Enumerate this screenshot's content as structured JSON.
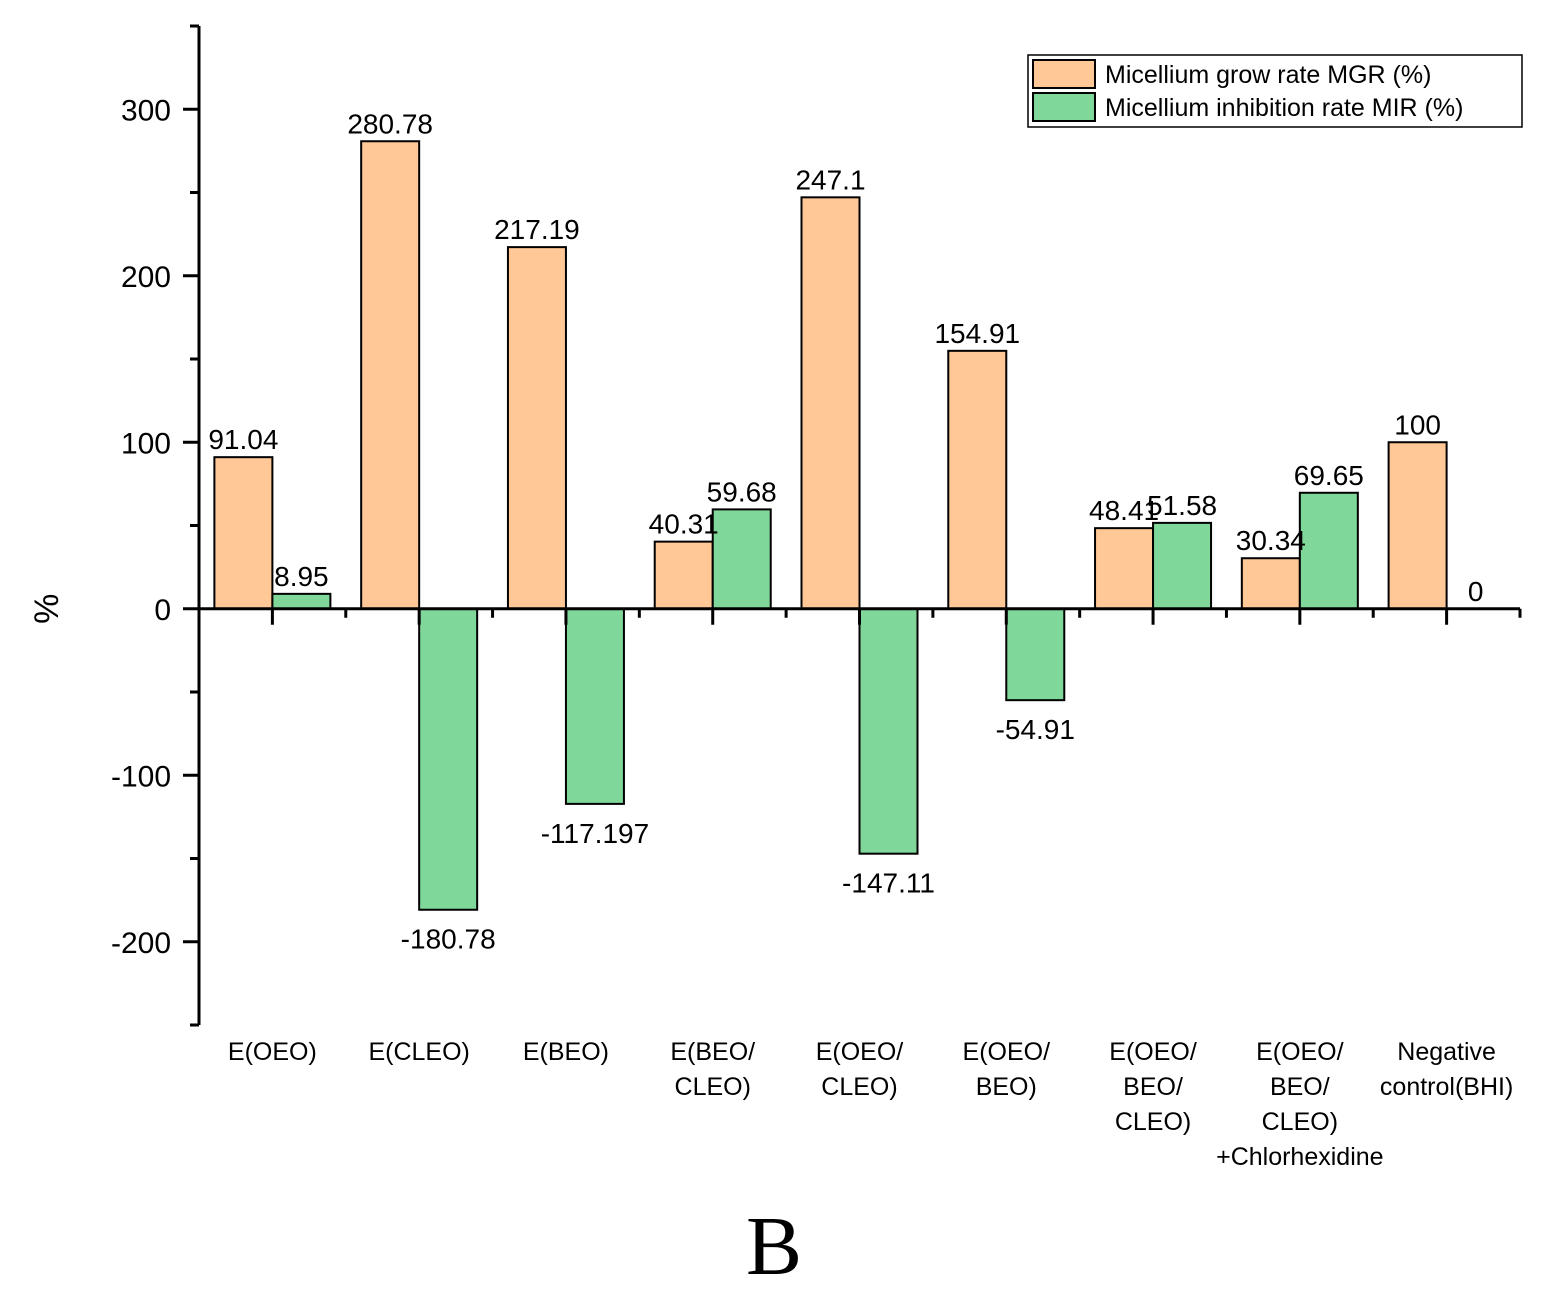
{
  "chart_data": {
    "type": "bar",
    "title": "",
    "xlabel": "",
    "ylabel": "%",
    "ylim": [
      -250,
      350
    ],
    "yticks": [
      -200,
      -100,
      0,
      100,
      200,
      300
    ],
    "grid": false,
    "legend_position": "top-right",
    "categories": [
      [
        "E(OEO)"
      ],
      [
        "E(CLEO)"
      ],
      [
        "E(BEO)"
      ],
      [
        "E(BEO/",
        "CLEO)"
      ],
      [
        "E(OEO/",
        "CLEO)"
      ],
      [
        "E(OEO/",
        "BEO)"
      ],
      [
        "E(OEO/",
        "BEO/",
        "CLEO)"
      ],
      [
        "E(OEO/",
        "BEO/",
        "CLEO)",
        "+Chlorhexidine"
      ],
      [
        "Negative",
        "control(BHI)"
      ]
    ],
    "series": [
      {
        "name": "Micellium grow rate MGR (%)",
        "color": "#FFC896",
        "values": [
          91.04,
          280.78,
          217.19,
          40.31,
          247.1,
          154.91,
          48.41,
          30.34,
          100
        ],
        "labels": [
          "91.04",
          "280.78",
          "217.19",
          "40.31",
          "247.1",
          "154.91",
          "48.41",
          "30.34",
          "100"
        ]
      },
      {
        "name": "Micellium inhibition rate MIR (%)",
        "color": "#7FD899",
        "values": [
          8.95,
          -180.78,
          -117.197,
          59.68,
          -147.11,
          -54.91,
          51.58,
          69.65,
          0
        ],
        "labels": [
          "8.95",
          "-180.78",
          "-117.197",
          "59.68",
          "-147.11",
          "-54.91",
          "51.58",
          "69.65",
          "0"
        ]
      }
    ]
  },
  "panel_letter": "B"
}
